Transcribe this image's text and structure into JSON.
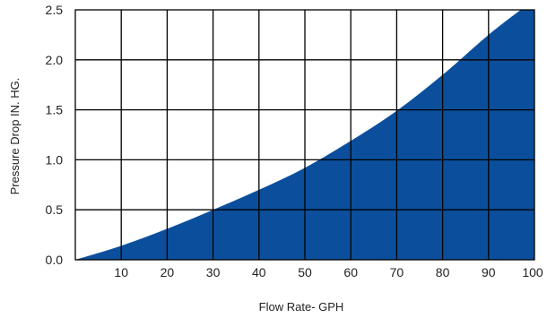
{
  "chart_data": {
    "type": "area",
    "title": "",
    "xlabel": "Flow Rate- GPH",
    "ylabel": "Pressure Drop IN. HG.",
    "xlim": [
      0,
      100
    ],
    "ylim": [
      0,
      2.5
    ],
    "x_ticks": [
      "10",
      "20",
      "30",
      "40",
      "50",
      "60",
      "70",
      "80",
      "90",
      "100"
    ],
    "y_ticks": [
      "0.0",
      "0.5",
      "1.0",
      "1.5",
      "2.0",
      "2.5"
    ],
    "x_tick_values": [
      10,
      20,
      30,
      40,
      50,
      60,
      70,
      80,
      90,
      100
    ],
    "y_tick_values": [
      0,
      0.5,
      1.0,
      1.5,
      2.0,
      2.5
    ],
    "grid": true,
    "fill_color": "#0B4F9C",
    "series": [
      {
        "x": [
          0,
          10,
          20,
          30,
          40,
          50,
          60,
          70,
          80,
          90,
          97
        ],
        "y": [
          0,
          0.14,
          0.31,
          0.5,
          0.7,
          0.92,
          1.19,
          1.49,
          1.85,
          2.25,
          2.5
        ]
      }
    ]
  }
}
